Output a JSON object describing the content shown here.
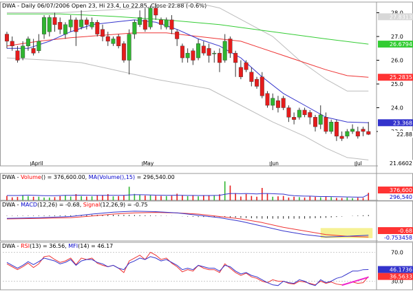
{
  "chart_data": {
    "type": "candlestick",
    "header": {
      "symbol": "DWA",
      "text": "DWA - Daily 06/07/2006 Open 23, Hi 23.4, Lo 22.85, Close 22.88 (-0.6%)"
    },
    "x_labels": [
      "April",
      "May",
      "Jun",
      "Jul"
    ],
    "price_axis": {
      "ticks": [
        "28.0",
        "27.0",
        "26.0",
        "25.0",
        "24.0",
        "23.0"
      ],
      "markers": [
        {
          "text": "27.8313",
          "value": 27.8313,
          "color": "#ffffff",
          "bg": "#d8d8d8"
        },
        {
          "text": "26.6794",
          "value": 26.6794,
          "color": "#ffffff",
          "bg": "#33cc33"
        },
        {
          "text": "25.2835",
          "value": 25.2835,
          "color": "#ffffff",
          "bg": "#ff3333"
        },
        {
          "text": "23.368",
          "value": 23.368,
          "color": "#ffffff",
          "bg": "#3333cc"
        },
        {
          "text": "22.88",
          "value": 22.88,
          "color": "#000000",
          "bg": "#ffffff"
        },
        {
          "text": "21.6602",
          "value": 21.6602,
          "color": "#000000",
          "bg": "#ffffff"
        }
      ],
      "range": [
        21.55,
        28.45
      ]
    },
    "candles": [
      [
        27.1,
        26.8,
        27.2,
        26.5
      ],
      [
        26.8,
        26.6,
        27.0,
        26.4
      ],
      [
        26.4,
        26.0,
        26.6,
        25.9
      ],
      [
        26.1,
        26.6,
        26.8,
        26.0
      ],
      [
        26.6,
        26.9,
        27.0,
        26.4
      ],
      [
        26.5,
        26.3,
        26.9,
        26.2
      ],
      [
        26.4,
        26.8,
        27.1,
        26.3
      ],
      [
        27.1,
        27.8,
        27.9,
        26.9
      ],
      [
        27.2,
        27.8,
        27.9,
        27.0
      ],
      [
        27.8,
        27.5,
        28.0,
        27.2
      ],
      [
        27.6,
        27.3,
        27.8,
        27.1
      ],
      [
        27.1,
        27.5,
        27.6,
        26.9
      ],
      [
        27.4,
        27.7,
        27.9,
        27.2
      ],
      [
        27.7,
        27.2,
        27.8,
        26.6
      ],
      [
        27.4,
        27.7,
        28.1,
        27.3
      ],
      [
        27.7,
        27.5,
        27.8,
        27.3
      ],
      [
        27.4,
        27.6,
        27.8,
        27.3
      ],
      [
        27.6,
        27.1,
        27.7,
        27.0
      ],
      [
        27.3,
        27.0,
        27.5,
        26.8
      ],
      [
        27.0,
        26.8,
        27.2,
        26.6
      ],
      [
        26.7,
        26.9,
        27.0,
        26.6
      ],
      [
        27.0,
        26.6,
        27.1,
        26.5
      ],
      [
        26.7,
        26.0,
        26.8,
        25.9
      ],
      [
        26.0,
        27.1,
        27.3,
        25.4
      ],
      [
        27.1,
        27.6,
        27.7,
        26.9
      ],
      [
        27.5,
        27.8,
        28.1,
        27.4
      ],
      [
        27.7,
        27.3,
        28.2,
        27.2
      ],
      [
        27.4,
        28.2,
        28.3,
        27.3
      ],
      [
        28.2,
        27.9,
        28.4,
        27.7
      ],
      [
        27.7,
        27.5,
        27.8,
        27.3
      ],
      [
        27.4,
        27.7,
        27.8,
        27.3
      ],
      [
        27.7,
        27.3,
        27.9,
        27.1
      ],
      [
        27.2,
        26.9,
        27.3,
        26.6
      ],
      [
        26.6,
        26.1,
        26.7,
        25.9
      ],
      [
        26.1,
        26.3,
        26.5,
        25.9
      ],
      [
        26.4,
        26.0,
        26.5,
        25.8
      ],
      [
        26.1,
        26.7,
        26.9,
        26.0
      ],
      [
        26.6,
        26.3,
        26.8,
        26.2
      ],
      [
        26.5,
        26.2,
        26.7,
        25.9
      ],
      [
        26.3,
        26.3,
        26.4,
        25.9
      ],
      [
        26.3,
        25.9,
        26.5,
        25.5
      ],
      [
        26.0,
        26.8,
        27.1,
        25.9
      ],
      [
        26.9,
        26.3,
        27.0,
        26.1
      ],
      [
        26.3,
        25.9,
        26.4,
        25.3
      ],
      [
        25.7,
        25.3,
        26.0,
        25.2
      ],
      [
        25.9,
        25.6,
        26.0,
        25.5
      ],
      [
        25.5,
        25.1,
        25.7,
        24.9
      ],
      [
        25.2,
        24.9,
        25.3,
        24.8
      ],
      [
        25.3,
        24.5,
        25.5,
        24.4
      ],
      [
        24.6,
        24.1,
        24.7,
        24.0
      ],
      [
        24.1,
        24.4,
        24.6,
        23.9
      ],
      [
        24.3,
        24.0,
        24.5,
        23.8
      ],
      [
        24.4,
        24.0,
        24.5,
        23.9
      ],
      [
        24.0,
        23.6,
        24.1,
        23.4
      ],
      [
        23.6,
        23.5,
        23.8,
        23.3
      ],
      [
        23.6,
        23.9,
        24.0,
        23.5
      ],
      [
        23.9,
        23.7,
        24.0,
        23.6
      ],
      [
        23.8,
        23.6,
        23.9,
        23.3
      ],
      [
        23.6,
        23.2,
        23.7,
        23.0
      ],
      [
        23.3,
        23.7,
        24.1,
        23.1
      ],
      [
        23.6,
        23.0,
        23.8,
        22.9
      ],
      [
        23.0,
        23.4,
        23.5,
        22.9
      ],
      [
        23.4,
        22.8,
        23.5,
        22.6
      ],
      [
        22.8,
        22.7,
        23.0,
        22.6
      ],
      [
        22.8,
        23.0,
        23.1,
        22.7
      ],
      [
        23.0,
        23.1,
        23.3,
        22.9
      ],
      [
        23.0,
        22.8,
        23.2,
        22.7
      ],
      [
        23.1,
        23.0,
        23.2,
        22.8
      ],
      [
        23.0,
        22.88,
        23.4,
        22.85
      ]
    ],
    "overlays": {
      "bollinger_upper": [
        [
          0,
          28.0
        ],
        [
          10,
          28.0
        ],
        [
          22,
          28.15
        ],
        [
          30,
          28.3
        ],
        [
          35,
          28.45
        ],
        [
          40,
          28.2
        ],
        [
          45,
          27.6
        ],
        [
          50,
          27.0
        ],
        [
          55,
          26.0
        ],
        [
          60,
          25.2
        ],
        [
          64,
          24.7
        ],
        [
          68,
          24.7
        ]
      ],
      "bollinger_lower": [
        [
          0,
          26.1
        ],
        [
          8,
          26.0
        ],
        [
          14,
          25.9
        ],
        [
          20,
          25.6
        ],
        [
          28,
          25.2
        ],
        [
          33,
          25.0
        ],
        [
          38,
          24.8
        ],
        [
          44,
          24.1
        ],
        [
          50,
          23.4
        ],
        [
          56,
          22.8
        ],
        [
          60,
          22.3
        ],
        [
          64,
          21.9
        ],
        [
          68,
          21.8
        ]
      ],
      "ma_short_blue": [
        [
          0,
          26.5
        ],
        [
          4,
          26.5
        ],
        [
          8,
          26.8
        ],
        [
          12,
          27.2
        ],
        [
          16,
          27.5
        ],
        [
          20,
          27.6
        ],
        [
          24,
          27.7
        ],
        [
          28,
          27.6
        ],
        [
          32,
          27.3
        ],
        [
          36,
          26.9
        ],
        [
          40,
          26.6
        ],
        [
          44,
          26.1
        ],
        [
          48,
          25.3
        ],
        [
          52,
          24.6
        ],
        [
          56,
          24.1
        ],
        [
          60,
          23.6
        ],
        [
          64,
          23.4
        ],
        [
          68,
          23.368
        ]
      ],
      "ma_mid_red": [
        [
          0,
          26.6
        ],
        [
          6,
          26.8
        ],
        [
          12,
          26.95
        ],
        [
          18,
          27.05
        ],
        [
          24,
          27.15
        ],
        [
          30,
          27.15
        ],
        [
          36,
          27.0
        ],
        [
          40,
          26.9
        ],
        [
          44,
          26.8
        ],
        [
          48,
          26.5
        ],
        [
          52,
          26.2
        ],
        [
          56,
          25.9
        ],
        [
          60,
          25.6
        ],
        [
          64,
          25.35
        ],
        [
          68,
          25.2835
        ]
      ],
      "ma_long_green": [
        [
          0,
          27.95
        ],
        [
          10,
          27.95
        ],
        [
          20,
          27.85
        ],
        [
          30,
          27.7
        ],
        [
          40,
          27.5
        ],
        [
          50,
          27.2
        ],
        [
          60,
          26.9
        ],
        [
          68,
          26.6794
        ]
      ]
    },
    "volume": {
      "label_prefix": "DWA - ",
      "label_parts": [
        {
          "text": "Volume",
          "color": "#ff0000"
        },
        {
          "text": "() = 376,600.00, ",
          "color": "#000000"
        },
        {
          "text": "MA(Volume(),15)",
          "color": "#0000cc"
        },
        {
          "text": " = 296,540.00",
          "color": "#000000"
        }
      ],
      "markers": [
        {
          "text": "376,600",
          "value": 376600,
          "color": "#ffffff",
          "bg": "#ff3333"
        },
        {
          "text": "296,540",
          "value": 296540,
          "color": "#0000cc",
          "bg": "#ffffff"
        }
      ],
      "values": [
        2.2,
        1.5,
        1.7,
        2.5,
        2.1,
        1.8,
        1.8,
        1.4,
        1.4,
        1.6,
        2.1,
        2.6,
        1.9,
        3.1,
        2.1,
        1.9,
        2.0,
        2.5,
        2.4,
        3.1,
        2.0,
        2.1,
        2.4,
        6.8,
        3.2,
        2.9,
        2.4,
        2.5,
        2.3,
        2.2,
        2.1,
        2.3,
        3.3,
        2.6,
        2.1,
        2.4,
        2.0,
        2.6,
        2.4,
        2.3,
        3.0,
        9.5,
        7.4,
        3.6,
        1.9,
        3.1,
        2.2,
        1.8,
        6.2,
        3.4,
        1.8,
        2.0,
        2.2,
        1.4,
        1.8,
        1.6,
        1.4,
        1.9,
        1.7,
        1.5,
        1.8,
        1.6,
        1.2,
        1.2,
        1.4,
        1.1,
        1.3,
        1.2,
        3.77
      ],
      "ma": [
        2.4,
        2.4,
        2.4,
        2.5,
        2.6,
        2.5,
        2.4,
        2.35,
        2.3,
        2.3,
        2.4,
        2.5,
        2.5,
        2.55,
        2.6,
        2.55,
        2.5,
        2.5,
        2.5,
        2.5,
        2.5,
        2.5,
        2.5,
        2.7,
        2.8,
        2.8,
        2.75,
        2.7,
        2.6,
        2.55,
        2.5,
        2.5,
        2.55,
        2.5,
        2.45,
        2.45,
        2.4,
        2.4,
        2.4,
        2.45,
        2.5,
        3.0,
        3.4,
        3.4,
        3.3,
        3.4,
        3.3,
        3.2,
        3.4,
        3.4,
        3.3,
        3.2,
        3.1,
        2.6,
        2.3,
        2.2,
        2.1,
        2.1,
        2.0,
        1.9,
        1.9,
        1.85,
        1.8,
        1.75,
        1.7,
        1.65,
        1.6,
        1.6,
        2.97
      ],
      "max": 10.0
    },
    "macd": {
      "label_parts": [
        {
          "text": "DWA - ",
          "color": "#000000"
        },
        {
          "text": "MACD",
          "color": "#0000cc"
        },
        {
          "text": "(12,26)",
          "color": "#000000"
        },
        {
          "text": " = -0.68, ",
          "color": "#000000"
        },
        {
          "text": "Signal",
          "color": "#ff0000"
        },
        {
          "text": "(12,26,9) = -0.75",
          "color": "#000000"
        }
      ],
      "markers": [
        {
          "text": "-0.68",
          "value": -0.68,
          "color": "#ffffff",
          "bg": "#ff3333"
        },
        {
          "text": "-0.753458",
          "value": -0.753458,
          "color": "#0000cc",
          "bg": "#ffffff"
        }
      ],
      "range": [
        -0.8,
        0.4
      ],
      "macd_line": [
        [
          0,
          0.02
        ],
        [
          6,
          0.05
        ],
        [
          12,
          0.1
        ],
        [
          16,
          0.2
        ],
        [
          20,
          0.28
        ],
        [
          24,
          0.32
        ],
        [
          28,
          0.3
        ],
        [
          32,
          0.25
        ],
        [
          36,
          0.15
        ],
        [
          40,
          0.05
        ],
        [
          44,
          -0.1
        ],
        [
          48,
          -0.3
        ],
        [
          52,
          -0.5
        ],
        [
          56,
          -0.65
        ],
        [
          60,
          -0.75
        ],
        [
          64,
          -0.72
        ],
        [
          68,
          -0.68
        ]
      ],
      "signal_line": [
        [
          0,
          0.0
        ],
        [
          6,
          0.02
        ],
        [
          12,
          0.05
        ],
        [
          16,
          0.12
        ],
        [
          20,
          0.2
        ],
        [
          24,
          0.25
        ],
        [
          28,
          0.27
        ],
        [
          32,
          0.25
        ],
        [
          36,
          0.2
        ],
        [
          40,
          0.1
        ],
        [
          44,
          0.0
        ],
        [
          48,
          -0.15
        ],
        [
          52,
          -0.35
        ],
        [
          56,
          -0.5
        ],
        [
          60,
          -0.65
        ],
        [
          64,
          -0.72
        ],
        [
          68,
          -0.75
        ]
      ],
      "highlight": {
        "x_from": 59,
        "x_to": 68,
        "y_from": -0.8,
        "y_to": -0.38
      }
    },
    "rsi": {
      "label_parts": [
        {
          "text": "DWA - ",
          "color": "#000000"
        },
        {
          "text": "RSI",
          "color": "#ff0000"
        },
        {
          "text": "(13) = 36.56, ",
          "color": "#000000"
        },
        {
          "text": "MFI",
          "color": "#0000cc"
        },
        {
          "text": "(14) = 46.17",
          "color": "#000000"
        }
      ],
      "ticks": [
        "70.0",
        "30.0"
      ],
      "range": [
        20,
        80
      ],
      "markers": [
        {
          "text": "46.1736",
          "value": 46.1736,
          "color": "#ffffff",
          "bg": "#3333cc"
        },
        {
          "text": "36.5633",
          "value": 36.5633,
          "color": "#ffffff",
          "bg": "#ff3333"
        }
      ],
      "rsi_line": [
        54,
        50,
        46,
        50,
        55,
        49,
        54,
        64,
        65,
        60,
        56,
        58,
        62,
        53,
        62,
        60,
        62,
        55,
        52,
        50,
        52,
        48,
        42,
        58,
        62,
        66,
        60,
        70,
        66,
        60,
        62,
        55,
        50,
        43,
        46,
        44,
        52,
        48,
        46,
        46,
        42,
        54,
        48,
        42,
        38,
        41,
        36,
        34,
        30,
        28,
        32,
        30,
        30,
        27,
        26,
        30,
        29,
        27,
        25,
        30,
        27,
        29,
        26,
        25,
        27,
        29,
        27,
        28,
        36.56
      ],
      "mfi_line": [
        56,
        52,
        48,
        52,
        57,
        53,
        57,
        62,
        60,
        58,
        54,
        56,
        60,
        52,
        58,
        60,
        60,
        56,
        54,
        50,
        52,
        48,
        46,
        55,
        58,
        62,
        60,
        64,
        62,
        58,
        60,
        56,
        52,
        46,
        48,
        46,
        52,
        50,
        48,
        48,
        44,
        52,
        50,
        44,
        40,
        42,
        38,
        36,
        32,
        28,
        25,
        24,
        30,
        28,
        27,
        32,
        30,
        26,
        24,
        32,
        28,
        30,
        34,
        36,
        40,
        44,
        44,
        46,
        46.17
      ],
      "trend_line": [
        [
          63,
          24.5
        ],
        [
          68,
          35.5
        ]
      ]
    }
  }
}
